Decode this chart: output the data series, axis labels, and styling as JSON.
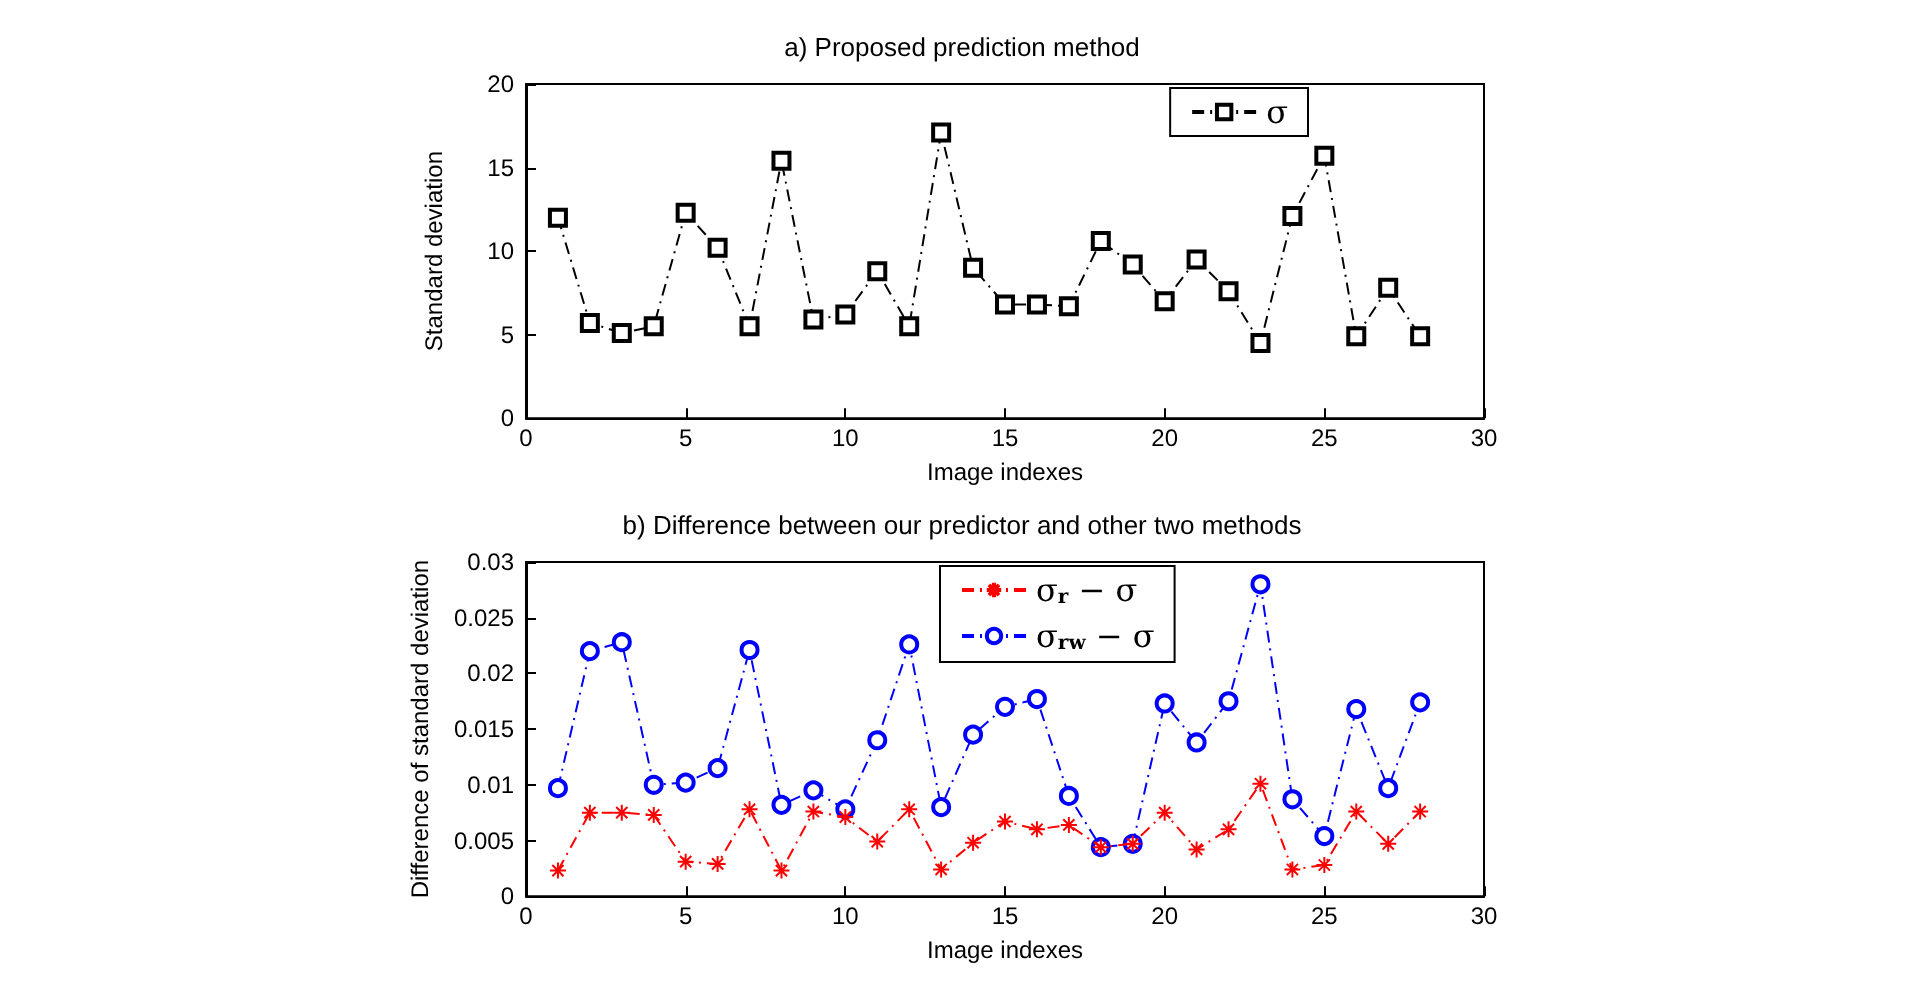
{
  "chart_data": [
    {
      "type": "line",
      "title": "a) Proposed prediction method",
      "xlabel": "Image indexes",
      "ylabel": "Standard deviation",
      "x": [
        1,
        2,
        3,
        4,
        5,
        6,
        7,
        8,
        9,
        10,
        11,
        12,
        13,
        14,
        15,
        16,
        17,
        18,
        19,
        20,
        21,
        22,
        23,
        24,
        25,
        26,
        27,
        28
      ],
      "series": [
        {
          "name": "σ",
          "color": "#000000",
          "marker": "square",
          "values": [
            12.0,
            5.7,
            5.1,
            5.5,
            12.3,
            10.2,
            5.5,
            15.4,
            5.9,
            6.2,
            8.8,
            5.5,
            17.1,
            9.0,
            6.8,
            6.8,
            6.7,
            10.6,
            9.2,
            7.0,
            9.5,
            7.6,
            4.5,
            12.1,
            15.7,
            4.9,
            7.8,
            4.9
          ]
        }
      ],
      "xlim": [
        0,
        30
      ],
      "xticks": [
        0,
        5,
        10,
        15,
        20,
        25,
        30
      ],
      "ylim": [
        0,
        20
      ],
      "yticks": [
        0,
        5,
        10,
        15,
        20
      ],
      "line_style": "dashed",
      "legend": "top right",
      "grid": false
    },
    {
      "type": "line",
      "title": "b) Difference between our predictor and other two methods",
      "xlabel": "Image indexes",
      "ylabel": "Difference of standard deviation",
      "x": [
        1,
        2,
        3,
        4,
        5,
        6,
        7,
        8,
        9,
        10,
        11,
        12,
        13,
        14,
        15,
        16,
        17,
        18,
        19,
        20,
        21,
        22,
        23,
        24,
        25,
        26,
        27,
        28
      ],
      "series": [
        {
          "name": "σ$_{r}$ − σ",
          "color": "#ff0000",
          "marker": "cross",
          "values": [
            0.0023,
            0.0075,
            0.0075,
            0.0073,
            0.0031,
            0.0029,
            0.0078,
            0.0023,
            0.0076,
            0.0071,
            0.0049,
            0.0078,
            0.0024,
            0.0048,
            0.0067,
            0.006,
            0.0064,
            0.0044,
            0.0047,
            0.0075,
            0.0042,
            0.006,
            0.0101,
            0.0024,
            0.0028,
            0.0076,
            0.0047,
            0.0076
          ]
        },
        {
          "name": "σ$_{rw}$ − σ",
          "color": "#0000ff",
          "marker": "circle",
          "values": [
            0.0097,
            0.022,
            0.0228,
            0.01,
            0.0102,
            0.0115,
            0.0221,
            0.0082,
            0.0095,
            0.0078,
            0.014,
            0.0226,
            0.008,
            0.0145,
            0.017,
            0.0177,
            0.009,
            0.0044,
            0.0047,
            0.0173,
            0.0138,
            0.0175,
            0.028,
            0.0087,
            0.0054,
            0.0168,
            0.0097,
            0.0174
          ]
        }
      ],
      "xlim": [
        0,
        30
      ],
      "xticks": [
        0,
        5,
        10,
        15,
        20,
        25,
        30
      ],
      "ylim": [
        0,
        0.03
      ],
      "yticks": [
        0,
        0.005,
        0.01,
        0.015,
        0.02,
        0.025,
        0.03
      ],
      "line_style": "dashed",
      "legend": "top",
      "grid": false
    }
  ]
}
